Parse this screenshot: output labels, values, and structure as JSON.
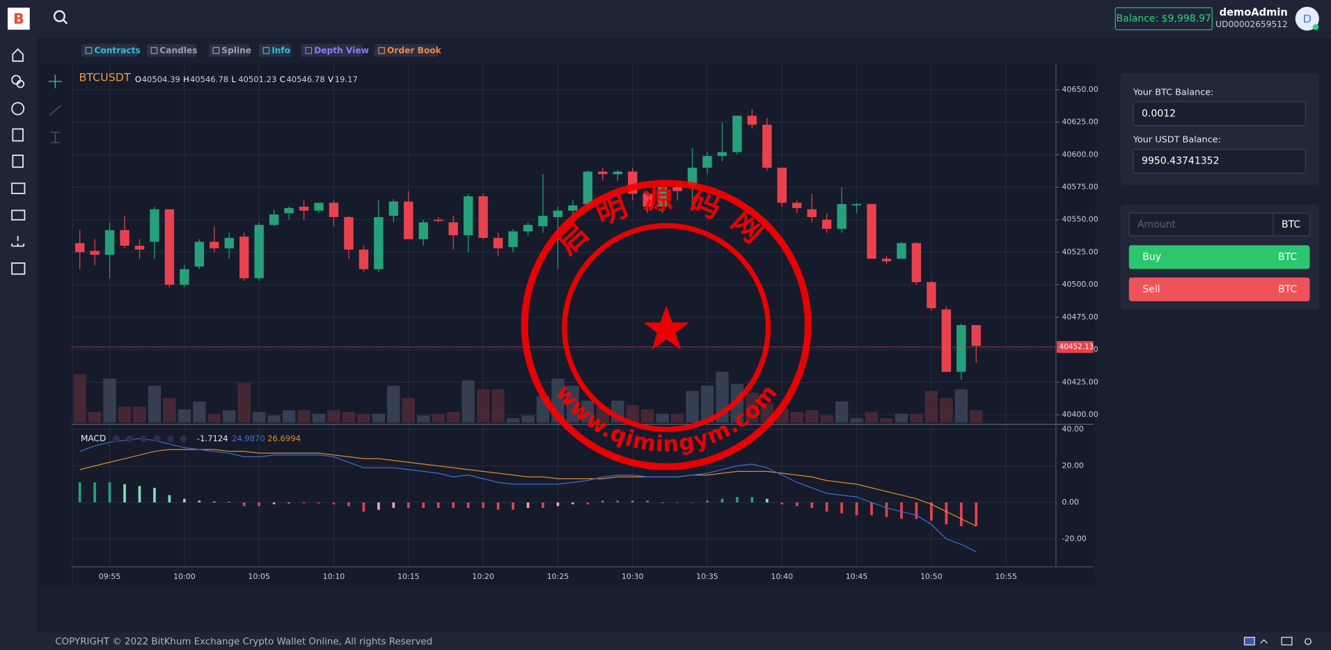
{
  "header": {
    "balance": "Balance: $9,998.97",
    "user": "demoAdmin",
    "user_id": "UD00002659512",
    "avatar": "D"
  },
  "toolbar": [
    "Contracts",
    "Candles",
    "Spline",
    "Info",
    "Depth View",
    "Order Book"
  ],
  "chart_data": {
    "type": "candlestick",
    "symbol": "BTCUSDT",
    "readout": [
      {
        "key": "O",
        "value": "40504.39"
      },
      {
        "key": "H",
        "value": "40546.78"
      },
      {
        "key": "L",
        "value": "40501.23"
      },
      {
        "key": "C",
        "value": "40546.78"
      },
      {
        "key": "V",
        "value": "19.17"
      }
    ],
    "up_color": "#26a17b",
    "down_color": "#e8424f",
    "candles": [
      [
        40532,
        40542,
        40512,
        40525
      ],
      [
        40526,
        40535,
        40515,
        40523
      ],
      [
        40523,
        40548,
        40505,
        40542
      ],
      [
        40542,
        40553,
        40528,
        40530
      ],
      [
        40530,
        40535,
        40520,
        40527
      ],
      [
        40533,
        40560,
        40520,
        40558
      ],
      [
        40558,
        40558,
        40498,
        40500
      ],
      [
        40500,
        40515,
        40498,
        40512
      ],
      [
        40514,
        40535,
        40512,
        40533
      ],
      [
        40533,
        40545,
        40525,
        40528
      ],
      [
        40528,
        40540,
        40520,
        40536
      ],
      [
        40537,
        40540,
        40503,
        40505
      ],
      [
        40505,
        40548,
        40503,
        40546
      ],
      [
        40546,
        40558,
        40545,
        40554
      ],
      [
        40555,
        40560,
        40550,
        40559
      ],
      [
        40560,
        40565,
        40550,
        40557
      ],
      [
        40557,
        40563,
        40555,
        40563
      ],
      [
        40563,
        40565,
        40545,
        40552
      ],
      [
        40552,
        40553,
        40520,
        40527
      ],
      [
        40527,
        40530,
        40510,
        40512
      ],
      [
        40512,
        40565,
        40510,
        40552
      ],
      [
        40553,
        40566,
        40548,
        40564
      ],
      [
        40564,
        40572,
        40535,
        40535
      ],
      [
        40535,
        40550,
        40530,
        40548
      ],
      [
        40550,
        40552,
        40548,
        40549
      ],
      [
        40548,
        40553,
        40527,
        40538
      ],
      [
        40538,
        40570,
        40525,
        40568
      ],
      [
        40568,
        40570,
        40535,
        40536
      ],
      [
        40536,
        40540,
        40522,
        40528
      ],
      [
        40529,
        40543,
        40525,
        40541
      ],
      [
        40541,
        40548,
        40538,
        40546
      ],
      [
        40545,
        40585,
        40540,
        40553
      ],
      [
        40552,
        40560,
        40512,
        40557
      ],
      [
        40557,
        40565,
        40552,
        40561
      ],
      [
        40562,
        40588,
        40558,
        40587
      ],
      [
        40587,
        40590,
        40580,
        40585
      ],
      [
        40585,
        40588,
        40580,
        40587
      ],
      [
        40587,
        40590,
        40565,
        40570
      ],
      [
        40570,
        40572,
        40555,
        40560
      ],
      [
        40560,
        40578,
        40555,
        40575
      ],
      [
        40575,
        40580,
        40565,
        40572
      ],
      [
        40576,
        40605,
        40560,
        40590
      ],
      [
        40590,
        40602,
        40585,
        40599
      ],
      [
        40599,
        40625,
        40595,
        40602
      ],
      [
        40602,
        40630,
        40600,
        40630
      ],
      [
        40630,
        40635,
        40620,
        40623
      ],
      [
        40623,
        40628,
        40588,
        40590
      ],
      [
        40590,
        40590,
        40560,
        40563
      ],
      [
        40563,
        40565,
        40555,
        40559
      ],
      [
        40558,
        40570,
        40548,
        40552
      ],
      [
        40550,
        40555,
        40540,
        40543
      ],
      [
        40543,
        40575,
        40540,
        40562
      ],
      [
        40561,
        40563,
        40555,
        40562
      ],
      [
        40562,
        40562,
        40520,
        40520
      ],
      [
        40520,
        40522,
        40516,
        40518
      ],
      [
        40520,
        40533,
        40520,
        40532
      ],
      [
        40532,
        40533,
        40500,
        40502
      ],
      [
        40502,
        40503,
        40480,
        40482
      ],
      [
        40481,
        40483,
        40433,
        40433
      ],
      [
        40433,
        40470,
        40427,
        40469
      ],
      [
        40469,
        40469,
        40440,
        40453
      ]
    ],
    "volumes": [
      55,
      12,
      50,
      18,
      18,
      42,
      28,
      15,
      24,
      10,
      14,
      45,
      12,
      8,
      14,
      14,
      10,
      14,
      12,
      10,
      10,
      42,
      28,
      8,
      10,
      12,
      48,
      38,
      38,
      5,
      8,
      30,
      50,
      42,
      25,
      18,
      25,
      20,
      15,
      10,
      10,
      36,
      42,
      58,
      44,
      34,
      22,
      16,
      12,
      14,
      8,
      24,
      5,
      12,
      5,
      10,
      10,
      36,
      28,
      38,
      14
    ],
    "ylim": [
      40394,
      40670
    ],
    "yticks": [
      {
        "value": 40400,
        "label": "40400.00"
      },
      {
        "value": 40425,
        "label": "40425.00"
      },
      {
        "value": 40450,
        "label": "40450.00"
      },
      {
        "value": 40475,
        "label": "40475.00"
      },
      {
        "value": 40500,
        "label": "40500.00"
      },
      {
        "value": 40525,
        "label": "40525.00"
      },
      {
        "value": 40550,
        "label": "40550.00"
      },
      {
        "value": 40575,
        "label": "40575.00"
      },
      {
        "value": 40600,
        "label": "40600.00"
      },
      {
        "value": 40625,
        "label": "40625.00"
      },
      {
        "value": 40650,
        "label": "40650.00"
      }
    ],
    "last_price": 40452.13,
    "x_labels": [
      "09:55",
      "10:00",
      "10:05",
      "10:10",
      "10:15",
      "10:20",
      "10:25",
      "10:30",
      "10:35",
      "10:40",
      "10:45",
      "10:50",
      "10:55"
    ],
    "macd": {
      "label": "MACD",
      "readout": [
        "-1.7124",
        "24.9870",
        "26.6994"
      ],
      "macd_color": "#3d6fd6",
      "signal_color": "#e08a2c",
      "macd": [
        28,
        31,
        33,
        34,
        35,
        34,
        32,
        30,
        29,
        28,
        27,
        25,
        25,
        26,
        26,
        26,
        26,
        25,
        22,
        19,
        19,
        19,
        18,
        17,
        16,
        14,
        15,
        13,
        11,
        10,
        10,
        10,
        10,
        11,
        12,
        14,
        15,
        15,
        14,
        14,
        14,
        15,
        16,
        18,
        20,
        21,
        19,
        15,
        11,
        8,
        5,
        4,
        3,
        0,
        -3,
        -5,
        -7,
        -12,
        -20,
        -23,
        -27
      ],
      "signal": [
        18,
        20,
        22,
        24,
        26,
        28,
        29,
        29,
        29,
        29,
        28,
        28,
        27,
        27,
        27,
        27,
        27,
        26,
        25,
        24,
        24,
        23,
        22,
        21,
        20,
        19,
        18,
        17,
        16,
        15,
        14,
        14,
        13,
        13,
        13,
        13,
        14,
        14,
        14,
        14,
        14,
        15,
        15,
        16,
        17,
        17,
        17,
        16,
        15,
        14,
        12,
        11,
        10,
        8,
        6,
        4,
        2,
        -1,
        -5,
        -9,
        -13
      ],
      "histogram": [
        11,
        11,
        11,
        10,
        9,
        8,
        4,
        2,
        1,
        0.5,
        0.3,
        -2,
        -2,
        -1,
        -0.5,
        -0.5,
        -0.5,
        -1,
        -2,
        -5,
        -4,
        -3,
        -3,
        -3,
        -3,
        -3,
        -3,
        -3,
        -4,
        -4,
        -3,
        -3,
        -2,
        -1,
        -1,
        1,
        1,
        1,
        1,
        0,
        0,
        0,
        1,
        2,
        3,
        3,
        2,
        -1,
        -2,
        -3,
        -5,
        -6,
        -7,
        -7,
        -8,
        -9,
        -9,
        -10,
        -12,
        -13,
        -13
      ],
      "ylim": [
        -35.3,
        41.9
      ],
      "yticks": [
        {
          "value": 40,
          "label": "40.00"
        },
        {
          "value": 20,
          "label": "20.00"
        },
        {
          "value": 0,
          "label": "0.00"
        },
        {
          "value": -20,
          "label": "-20.00"
        }
      ]
    }
  },
  "panel": {
    "btc_label": "Your BTC Balance:",
    "btc_value": "0.0012",
    "usdt_label": "Your USDT Balance:",
    "usdt_value": "9950.43741352",
    "amount_placeholder": "Amount",
    "amount_unit": "BTC",
    "buy": "Buy",
    "buy_unit": "BTC",
    "sell": "Sell",
    "sell_unit": "BTC"
  },
  "footer": "COPYRIGHT © 2022 BitKhum Exchange Crypto Wallet Online, All rights Reserved",
  "watermark": {
    "top": "启明源码网",
    "bottom": "www.qimingym.com"
  }
}
